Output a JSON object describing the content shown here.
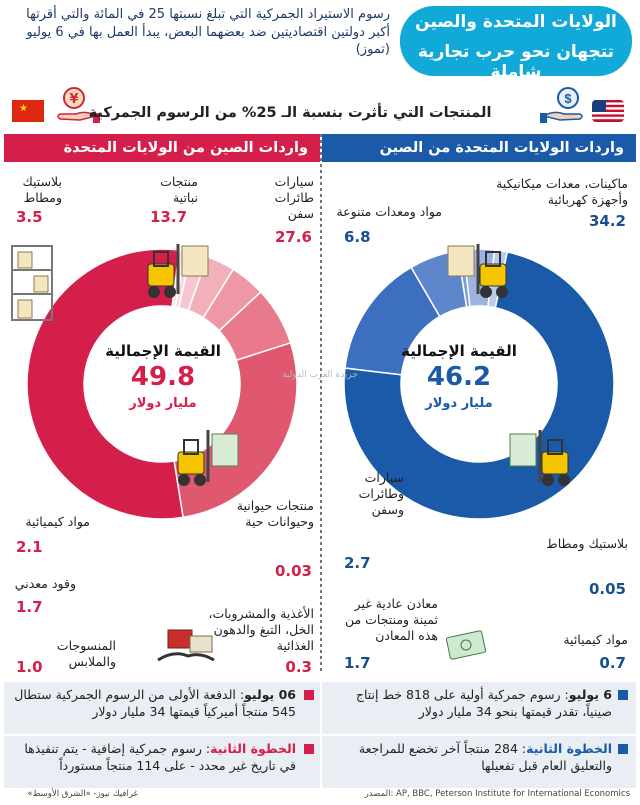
{
  "header": {
    "title_line1": "الولايات المتحدة والصين",
    "title_line2": "تتجهان نحو حرب تجارية شاملة",
    "subtitle": "رسوم الاستيراد الجمركية التي تبلغ نسبتها 25 في المائة والتي أقرتها أكبر دولتين اقتصاديتين ضد بعضهما البعض، يبدأ العمل بها في 6 يوليو (تموز)"
  },
  "banner": {
    "text": "المنتجات التي تأثرت بنسبة الـ 25% من الرسوم الجمركية"
  },
  "colors": {
    "us_dark": "#1a5aa8",
    "cn_dark": "#d41f4a",
    "title_badge": "#11a9d8"
  },
  "icons": [
    "us-flag-icon",
    "china-flag-icon",
    "dollar-hand-icon",
    "yuan-hand-icon",
    "forklift-icon",
    "handshake-icon",
    "cash-icon"
  ],
  "watermark": "جريدة العرب الدولية",
  "chart_data": [
    {
      "type": "pie",
      "panel_title": "واردات الولايات المتحدة من الصين",
      "total_title": "القيمة الإجمالية",
      "total_value": "46.2",
      "total_unit": "مليار دولار",
      "categories": [
        "ماكينات، معدات ميكانيكية وأجهزة كهربائية",
        "مواد ومعدات متنوعة",
        "سيارات وطائرات وسفن",
        "بلاستيك ومطاط",
        "معادن عادية غير ثمينة ومنتجات من هذه المعادن",
        "مواد كيميائية"
      ],
      "values": [
        34.2,
        6.8,
        2.7,
        0.05,
        1.7,
        0.7
      ],
      "value_labels": [
        "34.2",
        "6.8",
        "2.7",
        "0.05",
        "1.7",
        "0.7"
      ],
      "colors": [
        "#1a5aa8",
        "#3d6fbf",
        "#5d86cc",
        "#7d9dd6",
        "#9db4e0",
        "#bccbea"
      ]
    },
    {
      "type": "pie",
      "panel_title": "واردات الصين من الولايات المتحدة",
      "total_title": "القيمة الإجمالية",
      "total_value": "49.8",
      "total_unit": "مليار دولار",
      "categories": [
        "سيارات طائرات سفن",
        "منتجات نباتية",
        "بلاستيك ومطاط",
        "مواد كيميائية",
        "وقود معدني",
        "المنسوجات والملابس",
        "الأغذية والمشروبات، الخل، التبغ والدهون الغذائية",
        "منتجات حيوانية وحيوانات حية"
      ],
      "values": [
        27.6,
        13.7,
        3.5,
        2.1,
        1.7,
        1.0,
        0.3,
        0.03
      ],
      "value_labels": [
        "27.6",
        "13.7",
        "3.5",
        "2.1",
        "1.7",
        "1.0",
        "0.3",
        "0.03"
      ],
      "colors": [
        "#d41f4a",
        "#e0586f",
        "#e87a8c",
        "#ee97a5",
        "#f2b0bb",
        "#f6c7cf",
        "#f9d8de",
        "#fbe6ea"
      ]
    }
  ],
  "bottom": {
    "us_1_date": "6 يوليو",
    "us_1_text": ": رسوم جمركية أولية على 818 خط إنتاج صينياً، تقدر قيمتها بنحو 34 مليار دولار",
    "us_2_title": "الخطوة الثانية",
    "us_2_text": ": 284 منتجاً آخر تخضع للمراجعة والتعليق العام قبل تفعيلها",
    "cn_1_date": "06 يوليو",
    "cn_1_text": ": الدفعة الأولى من الرسوم الجمركية ستطال 545 منتجاً أميركياً قيمتها 34 مليار دولار",
    "cn_2_title": "الخطوة الثانية",
    "cn_2_text": ": رسوم جمركية إضافية - يتم تنفيذها في تاريخ غير محدد - على 114 منتجاً مستورداً"
  },
  "footer": {
    "source": "المصدر: AP, BBC, Peterson Institute for International Economics",
    "credit": "غرافيك نيوز- «الشرق الأوسط»"
  }
}
